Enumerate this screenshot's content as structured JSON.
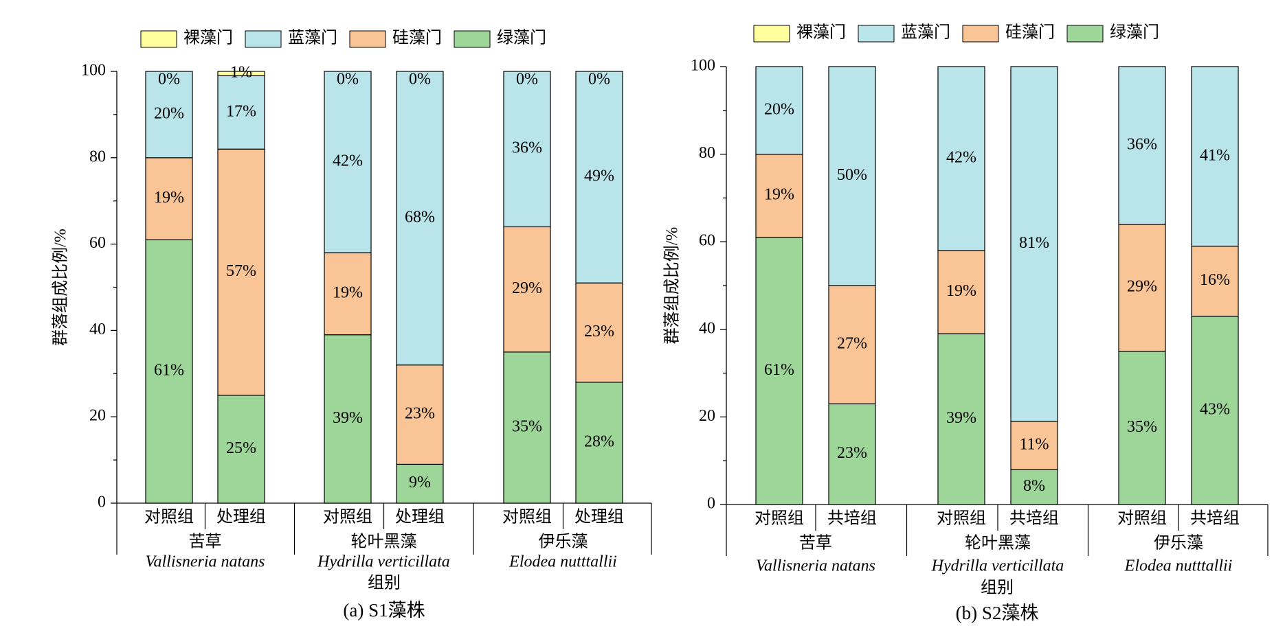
{
  "chart_data": [
    {
      "type": "bar",
      "stacked": true,
      "panel_label": "(a) S1藻株",
      "ylabel": "群落组成比例/%",
      "xlabel": "组别",
      "ylim": [
        0,
        100
      ],
      "yticks": [
        0,
        20,
        40,
        60,
        80,
        100
      ],
      "legend": [
        "裸藻门",
        "蓝藻门",
        "硅藻门",
        "绿藻门"
      ],
      "legend_position": "top",
      "groups": [
        {
          "name": "苦草",
          "latin": "Vallisneria natans"
        },
        {
          "name": "轮叶黑藻",
          "latin": "Hydrilla verticillata"
        },
        {
          "name": "伊乐藻",
          "latin": "Elodea nutttallii"
        }
      ],
      "categories": [
        "对照组",
        "处理组",
        "对照组",
        "处理组",
        "对照组",
        "处理组"
      ],
      "series": [
        {
          "name": "绿藻门",
          "values": [
            61,
            25,
            39,
            9,
            35,
            28
          ],
          "labels": [
            "61%",
            "25%",
            "39%",
            "9%",
            "35%",
            "28%"
          ]
        },
        {
          "name": "硅藻门",
          "values": [
            19,
            57,
            19,
            23,
            29,
            23
          ],
          "labels": [
            "19%",
            "57%",
            "19%",
            "23%",
            "29%",
            "23%"
          ]
        },
        {
          "name": "蓝藻门",
          "values": [
            20,
            17,
            42,
            68,
            36,
            49
          ],
          "labels": [
            "20%",
            "17%",
            "42%",
            "68%",
            "36%",
            "49%"
          ]
        },
        {
          "name": "裸藻门",
          "values": [
            0,
            1,
            0,
            0,
            0,
            0
          ],
          "labels": [
            "0%",
            "1%",
            "0%",
            "0%",
            "0%",
            "0%"
          ]
        }
      ]
    },
    {
      "type": "bar",
      "stacked": true,
      "panel_label": "(b) S2藻株",
      "ylabel": "群落组成比例/%",
      "xlabel": "组别",
      "ylim": [
        0,
        100
      ],
      "yticks": [
        0,
        20,
        40,
        60,
        80,
        100
      ],
      "legend": [
        "裸藻门",
        "蓝藻门",
        "硅藻门",
        "绿藻门"
      ],
      "legend_position": "top",
      "groups": [
        {
          "name": "苦草",
          "latin": "Vallisneria natans"
        },
        {
          "name": "轮叶黑藻",
          "latin": "Hydrilla verticillata"
        },
        {
          "name": "伊乐藻",
          "latin": "Elodea nutttallii"
        }
      ],
      "categories": [
        "对照组",
        "共培组",
        "对照组",
        "共培组",
        "对照组",
        "共培组"
      ],
      "series": [
        {
          "name": "绿藻门",
          "values": [
            61,
            23,
            39,
            8,
            35,
            43
          ],
          "labels": [
            "61%",
            "23%",
            "39%",
            "8%",
            "35%",
            "43%"
          ]
        },
        {
          "name": "硅藻门",
          "values": [
            19,
            27,
            19,
            11,
            29,
            16
          ],
          "labels": [
            "19%",
            "27%",
            "19%",
            "11%",
            "29%",
            "16%"
          ]
        },
        {
          "name": "蓝藻门",
          "values": [
            20,
            50,
            42,
            81,
            36,
            41
          ],
          "labels": [
            "20%",
            "50%",
            "42%",
            "81%",
            "36%",
            "41%"
          ]
        },
        {
          "name": "裸藻门",
          "values": [
            0,
            0,
            0,
            0,
            0,
            0
          ],
          "labels": [
            "",
            "",
            "",
            "",
            "",
            ""
          ]
        }
      ]
    }
  ],
  "colors": {
    "裸藻门": "#FFFFA0",
    "蓝藻门": "#B8E4EA",
    "硅藻门": "#F9C596",
    "绿藻门": "#9ED69A"
  }
}
